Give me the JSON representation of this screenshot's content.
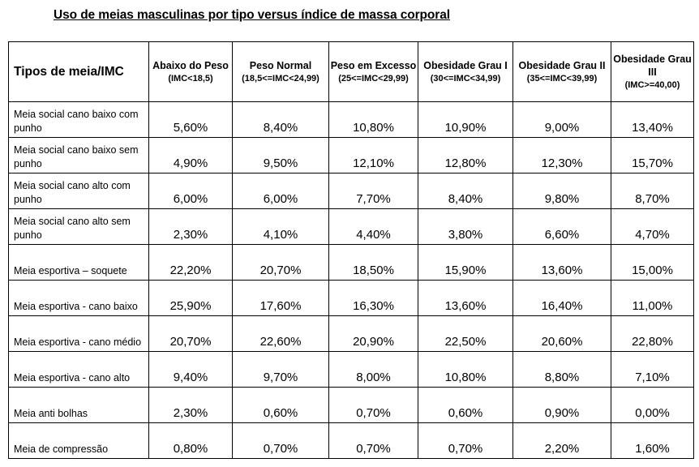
{
  "title": "Uso de meias masculinas por tipo versus índice de massa corporal",
  "corner_header": "Tipos de meia/IMC",
  "columns": [
    {
      "name": "Abaixo do Peso",
      "range": "(IMC<18,5)"
    },
    {
      "name": "Peso Normal",
      "range": "(18,5<=IMC<24,99)"
    },
    {
      "name": "Peso em Excesso",
      "range": "(25<=IMC<29,99)"
    },
    {
      "name": "Obesidade Grau I",
      "range": "(30<=IMC<34,99)"
    },
    {
      "name": "Obesidade Grau II",
      "range": "(35<=IMC<39,99)"
    },
    {
      "name": "Obesidade Grau III",
      "range": "(IMC>=40,00)"
    }
  ],
  "rows": [
    {
      "label": "Meia social cano baixo com punho",
      "values": [
        "5,60%",
        "8,40%",
        "10,80%",
        "10,90%",
        "9,00%",
        "13,40%"
      ]
    },
    {
      "label": "Meia social cano baixo sem punho",
      "values": [
        "4,90%",
        "9,50%",
        "12,10%",
        "12,80%",
        "12,30%",
        "15,70%"
      ]
    },
    {
      "label": "Meia social cano alto com punho",
      "values": [
        "6,00%",
        "6,00%",
        "7,70%",
        "8,40%",
        "9,80%",
        "8,70%"
      ]
    },
    {
      "label": "Meia social cano alto sem punho",
      "values": [
        "2,30%",
        "4,10%",
        "4,40%",
        "3,80%",
        "6,60%",
        "4,70%"
      ]
    },
    {
      "label": "Meia esportiva – soquete",
      "values": [
        "22,20%",
        "20,70%",
        "18,50%",
        "15,90%",
        "13,60%",
        "15,00%"
      ]
    },
    {
      "label": "Meia esportiva - cano baixo",
      "values": [
        "25,90%",
        "17,60%",
        "16,30%",
        "13,60%",
        "16,40%",
        "11,00%"
      ]
    },
    {
      "label": "Meia esportiva - cano médio",
      "values": [
        "20,70%",
        "22,60%",
        "20,90%",
        "22,50%",
        "20,60%",
        "22,80%"
      ]
    },
    {
      "label": "Meia esportiva - cano alto",
      "values": [
        "9,40%",
        "9,70%",
        "8,00%",
        "10,80%",
        "8,80%",
        "7,10%"
      ]
    },
    {
      "label": "Meia anti bolhas",
      "values": [
        "2,30%",
        "0,60%",
        "0,70%",
        "0,60%",
        "0,90%",
        "0,00%"
      ]
    },
    {
      "label": "Meia de compressão",
      "values": [
        "0,80%",
        "0,70%",
        "0,70%",
        "0,70%",
        "2,20%",
        "1,60%"
      ]
    }
  ]
}
